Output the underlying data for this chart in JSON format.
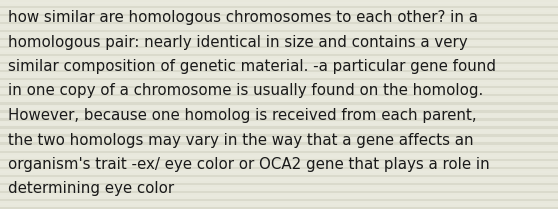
{
  "lines": [
    "how similar are homologous chromosomes to each other? in a",
    "homologous pair: nearly identical in size and contains a very",
    "similar composition of genetic material. -a particular gene found",
    "in one copy of a chromosome is usually found on the homolog.",
    "However, because one homolog is received from each parent,",
    "the two homologs may vary in the way that a gene affects an",
    "organism's trait -ex/ eye color or OCA2 gene that plays a role in",
    "determining eye color"
  ],
  "background_color": "#e8e8dc",
  "stripe_color_dark": "#d0d0c0",
  "stripe_color_light": "#eeeee4",
  "text_color": "#1a1a1a",
  "font_size": 10.8,
  "fig_width": 5.58,
  "fig_height": 2.09,
  "dpi": 100
}
